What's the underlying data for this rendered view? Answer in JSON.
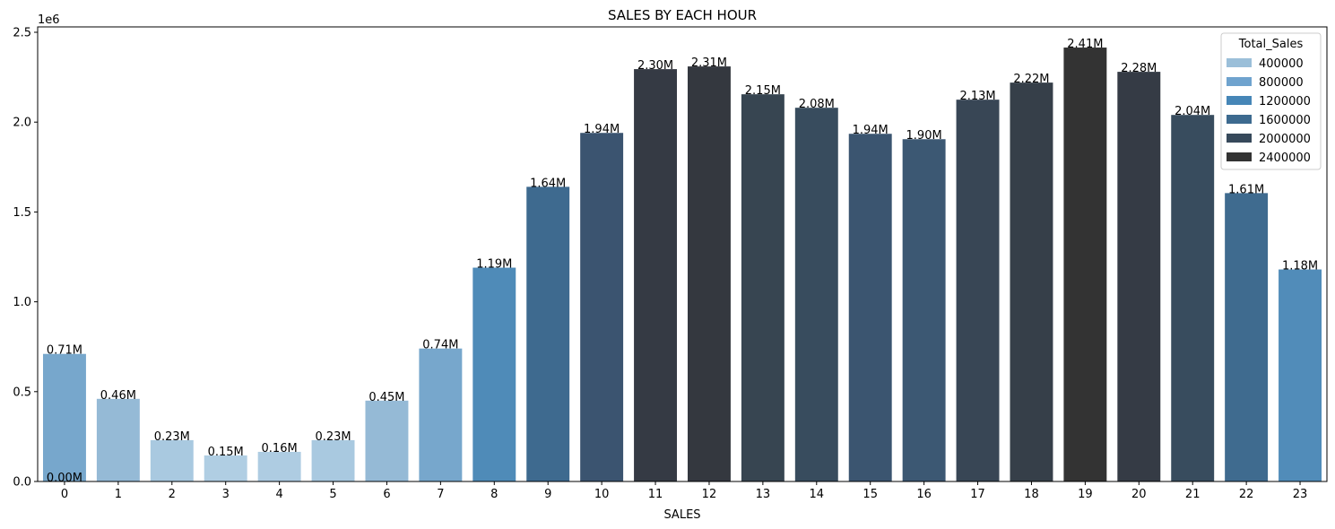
{
  "chart_data": {
    "type": "bar",
    "title": "SALES BY EACH HOUR",
    "xlabel": "SALES",
    "ylabel": "",
    "y_scale_label": "1e6",
    "ylim": [
      0,
      2.53
    ],
    "y_ticks": [
      0.0,
      0.5,
      1.0,
      1.5,
      2.0,
      2.5
    ],
    "y_tick_labels": [
      "0.0",
      "0.5",
      "1.0",
      "1.5",
      "2.0",
      "2.5"
    ],
    "categories": [
      "0",
      "1",
      "2",
      "3",
      "4",
      "5",
      "6",
      "7",
      "8",
      "9",
      "10",
      "11",
      "12",
      "13",
      "14",
      "15",
      "16",
      "17",
      "18",
      "19",
      "20",
      "21",
      "22",
      "23"
    ],
    "values": [
      0.71,
      0.46,
      0.23,
      0.145,
      0.165,
      0.23,
      0.45,
      0.74,
      1.19,
      1.64,
      1.94,
      2.295,
      2.31,
      2.155,
      2.08,
      1.935,
      1.905,
      2.125,
      2.22,
      2.415,
      2.28,
      2.04,
      1.605,
      1.18
    ],
    "data_labels": [
      "0.71M",
      "0.46M",
      "0.23M",
      "0.15M",
      "0.16M",
      "0.23M",
      "0.45M",
      "0.74M",
      "1.19M",
      "1.64M",
      "1.94M",
      "2.30M",
      "2.31M",
      "2.15M",
      "2.08M",
      "1.94M",
      "1.90M",
      "2.13M",
      "2.22M",
      "2.41M",
      "2.28M",
      "2.04M",
      "1.61M",
      "1.18M"
    ],
    "extra_labels": [
      {
        "category": "0",
        "text": "0.00M"
      }
    ],
    "legend": {
      "title": "Total_Sales",
      "position": "top-right",
      "entries": [
        {
          "label": "400000",
          "color": "#9bbfd9"
        },
        {
          "label": "800000",
          "color": "#6fa3ce"
        },
        {
          "label": "1200000",
          "color": "#4686b7"
        },
        {
          "label": "1600000",
          "color": "#3d6a8f"
        },
        {
          "label": "2000000",
          "color": "#37495b"
        },
        {
          "label": "2400000",
          "color": "#333333"
        }
      ]
    },
    "bar_colors": [
      "#77a7cc",
      "#95bad6",
      "#a9c9e0",
      "#b0cee3",
      "#aecce2",
      "#a9c9e0",
      "#95bad6",
      "#77a7cc",
      "#4f8bb8",
      "#3e6a8f",
      "#3b5470",
      "#353a44",
      "#34383f",
      "#374551",
      "#384c5e",
      "#3b5570",
      "#3c5873",
      "#384655",
      "#363f49",
      "#333333",
      "#353b45",
      "#384c5e",
      "#3f6b8f",
      "#518cb9"
    ],
    "grid": false
  }
}
